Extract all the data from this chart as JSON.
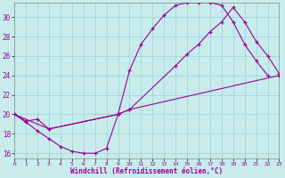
{
  "xlabel": "Windchill (Refroidissement éolien,°C)",
  "bg_color": "#c8ecec",
  "grid_color": "#a8d8d8",
  "line_color": "#990099",
  "xlim": [
    0,
    23
  ],
  "ylim": [
    15.5,
    31.5
  ],
  "ytick_vals": [
    16,
    18,
    20,
    22,
    24,
    26,
    28,
    30
  ],
  "xtick_vals": [
    0,
    1,
    2,
    3,
    4,
    5,
    6,
    7,
    8,
    9,
    10,
    11,
    12,
    13,
    14,
    15,
    16,
    17,
    18,
    19,
    20,
    21,
    22,
    23
  ],
  "curve1_x": [
    0,
    1,
    2,
    3,
    4,
    5,
    6,
    7,
    8,
    9,
    10,
    11,
    12,
    13,
    14,
    15,
    16,
    17,
    18,
    19,
    20,
    21,
    22
  ],
  "curve1_y": [
    20.0,
    19.2,
    18.3,
    17.5,
    16.7,
    16.2,
    16.0,
    16.0,
    16.5,
    20.0,
    24.5,
    27.2,
    28.8,
    30.2,
    31.2,
    31.5,
    31.5,
    31.5,
    31.2,
    29.5,
    27.2,
    25.5,
    24.0
  ],
  "curve2_x": [
    0,
    1,
    2,
    3,
    9,
    10,
    14,
    15,
    16,
    17,
    18,
    19,
    20,
    21,
    22,
    23
  ],
  "curve2_y": [
    20.0,
    19.3,
    19.5,
    18.5,
    20.0,
    20.5,
    25.0,
    26.2,
    27.2,
    28.5,
    29.5,
    31.0,
    29.5,
    27.5,
    26.0,
    24.2
  ],
  "curve3_x": [
    0,
    3,
    9,
    10,
    23
  ],
  "curve3_y": [
    20.0,
    18.5,
    20.0,
    20.5,
    24.0
  ]
}
